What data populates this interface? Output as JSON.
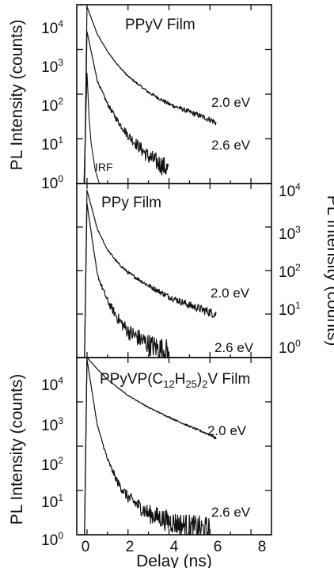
{
  "chart_data": [
    {
      "type": "line",
      "title": "PPyV Film",
      "xlabel": "Delay (ns)",
      "ylabel": "PL Intensity (counts)",
      "y_axis_side": "left",
      "y_scale": "log",
      "xlim": [
        -0.5,
        9
      ],
      "ylim": [
        1,
        10000
      ],
      "x_ticks": [
        0,
        2,
        4,
        6,
        8
      ],
      "y_ticks": [
        1,
        10,
        100,
        1000,
        10000
      ],
      "y_tick_labels": [
        {
          "base": "10",
          "exp": "0"
        },
        {
          "base": "10",
          "exp": "1"
        },
        {
          "base": "10",
          "exp": "2"
        },
        {
          "base": "10",
          "exp": "3"
        },
        {
          "base": "10",
          "exp": "4"
        }
      ],
      "series": [
        {
          "name": "2.0 eV",
          "peak": 9000,
          "x": [
            0,
            0.5,
            1,
            1.5,
            2,
            3,
            4,
            5,
            6,
            6.3
          ],
          "y": [
            9000,
            2200,
            900,
            450,
            250,
            110,
            60,
            40,
            27,
            23
          ]
        },
        {
          "name": "2.6 eV",
          "peak": 2500,
          "x": [
            0,
            0.5,
            1,
            1.5,
            2,
            3,
            4
          ],
          "y": [
            2500,
            200,
            60,
            25,
            12,
            4,
            2
          ]
        },
        {
          "name": "IRF",
          "peak": 300,
          "x": [
            -0.15,
            0,
            0.1,
            0.2,
            0.4,
            0.6
          ],
          "y": [
            1,
            300,
            30,
            8,
            2,
            1
          ]
        }
      ]
    },
    {
      "type": "line",
      "title": "PPy Film",
      "xlabel": "Delay (ns)",
      "ylabel": "PL Intensity (counts)",
      "y_axis_side": "right",
      "y_scale": "log",
      "xlim": [
        -0.5,
        9
      ],
      "ylim": [
        1,
        10000
      ],
      "x_ticks": [
        0,
        2,
        4,
        6,
        8
      ],
      "y_ticks": [
        1,
        10,
        100,
        1000,
        10000
      ],
      "y_tick_labels": [
        {
          "base": "10",
          "exp": "0"
        },
        {
          "base": "10",
          "exp": "1"
        },
        {
          "base": "10",
          "exp": "2"
        },
        {
          "base": "10",
          "exp": "3"
        },
        {
          "base": "10",
          "exp": "4"
        }
      ],
      "series": [
        {
          "name": "2.0 eV",
          "peak": 7000,
          "x": [
            0,
            0.5,
            1,
            1.5,
            2,
            3,
            4,
            5,
            6,
            6.3
          ],
          "y": [
            7000,
            900,
            300,
            150,
            90,
            45,
            25,
            16,
            11,
            10
          ]
        },
        {
          "name": "2.6 eV",
          "peak": 3500,
          "x": [
            0,
            0.5,
            1,
            1.5,
            2,
            3,
            4
          ],
          "y": [
            3500,
            80,
            20,
            8,
            4,
            2,
            1.3
          ]
        }
      ]
    },
    {
      "type": "line",
      "title": "PPyVP(C12H25)2V Film",
      "title_parts": {
        "a": "PPyVP(C",
        "sub1": "12",
        "b": "H",
        "sub2": "25",
        "c": ")",
        "sub3": "2",
        "d": "V Film"
      },
      "xlabel": "Delay (ns)",
      "ylabel": "PL Intensity (counts)",
      "y_axis_side": "left",
      "y_scale": "log",
      "xlim": [
        -0.5,
        9
      ],
      "ylim": [
        1,
        10000
      ],
      "x_ticks": [
        0,
        2,
        4,
        6,
        8
      ],
      "x_tick_labels": [
        "0",
        "2",
        "4",
        "6",
        "8"
      ],
      "y_ticks": [
        1,
        10,
        100,
        1000,
        10000
      ],
      "y_tick_labels": [
        {
          "base": "10",
          "exp": "0"
        },
        {
          "base": "10",
          "exp": "1"
        },
        {
          "base": "10",
          "exp": "2"
        },
        {
          "base": "10",
          "exp": "3"
        },
        {
          "base": "10",
          "exp": "4"
        }
      ],
      "series": [
        {
          "name": "2.0 eV",
          "peak": 10000,
          "x": [
            0,
            0.5,
            1,
            1.5,
            2,
            3,
            4,
            5,
            6,
            6.3
          ],
          "y": [
            10000,
            5500,
            3200,
            2100,
            1400,
            750,
            450,
            280,
            180,
            150
          ]
        },
        {
          "name": "2.6 eV",
          "peak": 9000,
          "x": [
            0,
            0.5,
            1,
            1.5,
            2,
            3,
            4,
            5,
            6
          ],
          "y": [
            9000,
            300,
            50,
            15,
            7,
            3,
            2,
            1.5,
            1.2
          ]
        }
      ]
    }
  ]
}
